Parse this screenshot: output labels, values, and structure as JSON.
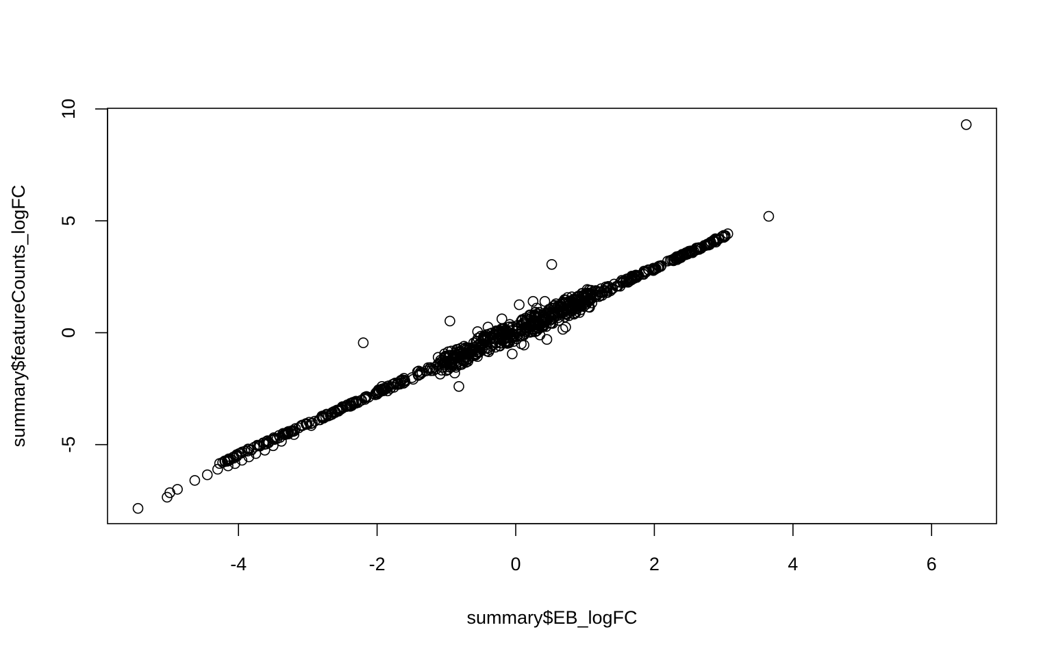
{
  "chart_data": {
    "type": "scatter",
    "title": "",
    "xlabel": "summary$EB_logFC",
    "ylabel": "summary$featureCounts_logFC",
    "xlim": [
      -5.7,
      7.2
    ],
    "ylim": [
      -8.4,
      10.0
    ],
    "xticks": [
      -4,
      -2,
      0,
      2,
      4,
      6
    ],
    "yticks": [
      -5,
      0,
      5,
      10
    ],
    "xtick_labels": [
      "-4",
      "-2",
      "0",
      "2",
      "4",
      "6"
    ],
    "ytick_labels": [
      "-5",
      "0",
      "5",
      "10"
    ],
    "grid": false,
    "legend": "none",
    "trend": {
      "slope": 1.39,
      "intercept": 0.1,
      "x_range": [
        -4.3,
        3.05
      ],
      "count": 520,
      "spread": 0.07
    },
    "points": [
      {
        "x": -5.45,
        "y": -7.85
      },
      {
        "x": -5.03,
        "y": -7.35
      },
      {
        "x": -4.99,
        "y": -7.15
      },
      {
        "x": -4.88,
        "y": -7.0
      },
      {
        "x": -4.63,
        "y": -6.6
      },
      {
        "x": -4.45,
        "y": -6.35
      },
      {
        "x": -4.3,
        "y": -6.1
      },
      {
        "x": -4.15,
        "y": -5.95
      },
      {
        "x": -4.05,
        "y": -5.85
      },
      {
        "x": -3.95,
        "y": -5.7
      },
      {
        "x": -3.85,
        "y": -5.55
      },
      {
        "x": -3.75,
        "y": -5.4
      },
      {
        "x": -3.62,
        "y": -5.25
      },
      {
        "x": -3.5,
        "y": -5.05
      },
      {
        "x": -3.38,
        "y": -4.85
      },
      {
        "x": -3.28,
        "y": -4.45
      },
      {
        "x": -3.2,
        "y": -4.55
      },
      {
        "x": -2.95,
        "y": -4.15
      },
      {
        "x": -2.65,
        "y": -3.65
      },
      {
        "x": -2.3,
        "y": -3.1
      },
      {
        "x": -1.98,
        "y": -2.55
      },
      {
        "x": -1.93,
        "y": -2.4
      },
      {
        "x": -1.85,
        "y": -2.6
      },
      {
        "x": -1.6,
        "y": -2.15
      },
      {
        "x": -1.12,
        "y": -1.1
      },
      {
        "x": -1.05,
        "y": -1.55
      },
      {
        "x": -0.98,
        "y": -1.65
      },
      {
        "x": -0.88,
        "y": -1.8
      },
      {
        "x": -0.82,
        "y": -2.4
      },
      {
        "x": -0.9,
        "y": -1.1
      },
      {
        "x": -2.2,
        "y": -0.45
      },
      {
        "x": -0.95,
        "y": 0.52
      },
      {
        "x": -0.8,
        "y": -0.95
      },
      {
        "x": -0.55,
        "y": 0.05
      },
      {
        "x": -0.4,
        "y": 0.25
      },
      {
        "x": -0.35,
        "y": -0.6
      },
      {
        "x": -0.2,
        "y": 0.62
      },
      {
        "x": -0.15,
        "y": -0.45
      },
      {
        "x": -0.05,
        "y": -0.95
      },
      {
        "x": 0.05,
        "y": 1.25
      },
      {
        "x": 0.08,
        "y": -0.5
      },
      {
        "x": 0.12,
        "y": -0.55
      },
      {
        "x": 0.25,
        "y": 1.4
      },
      {
        "x": 0.3,
        "y": 1.1
      },
      {
        "x": 0.35,
        "y": -0.1
      },
      {
        "x": 0.42,
        "y": 1.4
      },
      {
        "x": 0.45,
        "y": -0.3
      },
      {
        "x": 0.52,
        "y": 3.05
      },
      {
        "x": 0.68,
        "y": 0.15
      },
      {
        "x": 0.72,
        "y": 0.25
      },
      {
        "x": 0.85,
        "y": 1.5
      },
      {
        "x": 0.92,
        "y": 0.9
      },
      {
        "x": 1.05,
        "y": 1.15
      },
      {
        "x": 1.15,
        "y": 1.6
      },
      {
        "x": 1.3,
        "y": 2.05
      },
      {
        "x": 1.6,
        "y": 2.4
      },
      {
        "x": 1.85,
        "y": 2.75
      },
      {
        "x": 1.92,
        "y": 2.8
      },
      {
        "x": 2.05,
        "y": 2.9
      },
      {
        "x": 2.1,
        "y": 3.0
      },
      {
        "x": 2.25,
        "y": 3.25
      },
      {
        "x": 2.33,
        "y": 3.35
      },
      {
        "x": 2.4,
        "y": 3.5
      },
      {
        "x": 2.48,
        "y": 3.55
      },
      {
        "x": 2.65,
        "y": 3.8
      },
      {
        "x": 2.72,
        "y": 3.9
      },
      {
        "x": 2.88,
        "y": 4.2
      },
      {
        "x": 3.0,
        "y": 4.35
      },
      {
        "x": 3.06,
        "y": 4.42
      },
      {
        "x": 3.65,
        "y": 5.2
      },
      {
        "x": 6.5,
        "y": 9.3
      }
    ]
  }
}
